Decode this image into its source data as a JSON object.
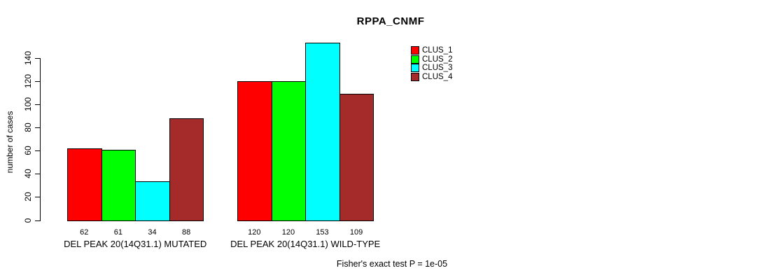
{
  "title": "RPPA_CNMF",
  "footer": "Fisher's exact test P = 1e-05",
  "chart_data": {
    "type": "bar",
    "title": "RPPA_CNMF",
    "xlabel": "",
    "ylabel": "number of cases",
    "ylim": [
      0,
      140
    ],
    "yticks": [
      0,
      20,
      40,
      60,
      80,
      100,
      120,
      140
    ],
    "grid": false,
    "legend_position": "top-right",
    "bar_value_labels": true,
    "categories": [
      "DEL PEAK 20(14Q31.1) MUTATED",
      "DEL PEAK 20(14Q31.1) WILD-TYPE"
    ],
    "series": [
      {
        "name": "CLUS_1",
        "color": "#ff0000",
        "values": [
          62,
          120
        ]
      },
      {
        "name": "CLUS_2",
        "color": "#00ff00",
        "values": [
          61,
          120
        ]
      },
      {
        "name": "CLUS_3",
        "color": "#00ffff",
        "values": [
          34,
          153
        ]
      },
      {
        "name": "CLUS_4",
        "color": "#a52a2a",
        "values": [
          88,
          109
        ]
      }
    ],
    "annotation": "Fisher's exact test P = 1e-05"
  }
}
